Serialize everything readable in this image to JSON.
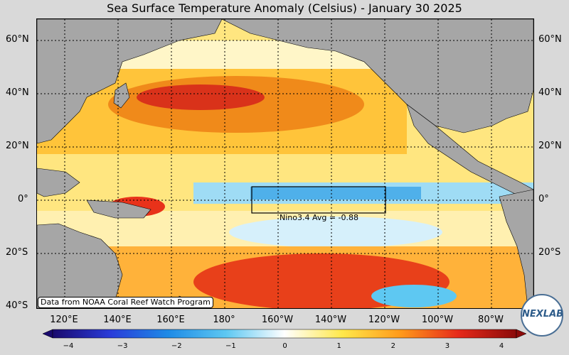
{
  "title": "Sea Surface Temperature Anomaly (Celsius) - January 30 2025",
  "lat_labels": [
    "60°N",
    "40°N",
    "20°N",
    "0°",
    "20°S",
    "40°S"
  ],
  "lon_labels": [
    "120°E",
    "140°E",
    "160°E",
    "180°",
    "160°W",
    "140°W",
    "120°W",
    "100°W",
    "80°W"
  ],
  "nino_box": {
    "label": "Nino3.4 Avg = -0.88"
  },
  "credit": "Data from NOAA Coral Reef Watch Program",
  "colorbar": {
    "min": -4,
    "max": 4,
    "ticks": [
      "−4",
      "−3",
      "−2",
      "−1",
      "0",
      "1",
      "2",
      "3",
      "4"
    ],
    "colors": [
      "#1a0a6e",
      "#2a3cd9",
      "#1e8be6",
      "#5ec8f2",
      "#ffffff",
      "#ffe84a",
      "#ff9a1a",
      "#e62a1a",
      "#8b0a0a"
    ]
  },
  "logo": {
    "text": "NEXLAB"
  },
  "colors": {
    "land": "#a6a6a6",
    "warm": "#ffb020",
    "hot": "#e8321a",
    "cool": "#5ec8f2",
    "cold": "#1e8be6",
    "neutral": "#fff8d0"
  }
}
